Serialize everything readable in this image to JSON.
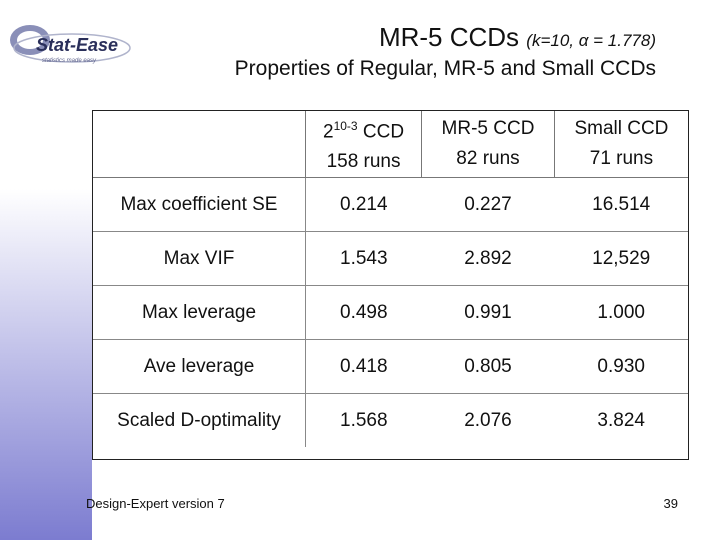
{
  "logo": {
    "text": "Stat-Ease",
    "tagline": "statistics made easy"
  },
  "title": {
    "main": "MR-5 CCDs",
    "params": "(k=10, α = 1.778)"
  },
  "subtitle": "Properties of Regular, MR-5 and Small CCDs",
  "table": {
    "headers": [
      {
        "base": "2",
        "sup": "10-3",
        "rest": " CCD",
        "runs": "158 runs"
      },
      {
        "line1": "MR-5 CCD",
        "runs": "82 runs"
      },
      {
        "line1": "Small CCD",
        "runs": "71 runs"
      }
    ],
    "rows": [
      {
        "label": "Max coefficient SE",
        "values": [
          "0.214",
          "0.227",
          "16.514"
        ]
      },
      {
        "label": "Max VIF",
        "values": [
          "1.543",
          "2.892",
          "12,529"
        ]
      },
      {
        "label": "Max leverage",
        "values": [
          "0.498",
          "0.991",
          "1.000"
        ]
      },
      {
        "label": "Ave leverage",
        "values": [
          "0.418",
          "0.805",
          "0.930"
        ]
      },
      {
        "label": "Scaled D-optimality",
        "values": [
          "1.568",
          "2.076",
          "3.824"
        ]
      }
    ]
  },
  "footer": "Design-Expert version 7",
  "page_number": "39"
}
